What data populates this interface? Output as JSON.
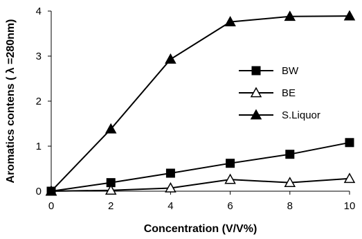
{
  "chart_data": {
    "type": "line",
    "xlabel": "Concentration (V/V%)",
    "ylabel": "Aromatics contens ( λ =280nm)",
    "xlim": [
      0,
      10
    ],
    "ylim": [
      0,
      4
    ],
    "xticks": [
      0,
      2,
      4,
      6,
      8,
      10
    ],
    "yticks": [
      0,
      1,
      2,
      3,
      4
    ],
    "grid": false,
    "legend_position": "right-middle",
    "x": [
      0,
      2,
      4,
      6,
      8,
      10
    ],
    "series": [
      {
        "name": "BW",
        "marker": "square",
        "values": [
          0,
          0.19,
          0.4,
          0.62,
          0.82,
          1.08
        ]
      },
      {
        "name": "BE",
        "marker": "triangle-open",
        "values": [
          0,
          0.02,
          0.07,
          0.26,
          0.19,
          0.28
        ]
      },
      {
        "name": "S.Liquor",
        "marker": "triangle-filled",
        "values": [
          0,
          1.38,
          2.93,
          3.76,
          3.88,
          3.89
        ]
      }
    ],
    "colors": {
      "line": "#000000",
      "background": "#ffffff"
    }
  }
}
